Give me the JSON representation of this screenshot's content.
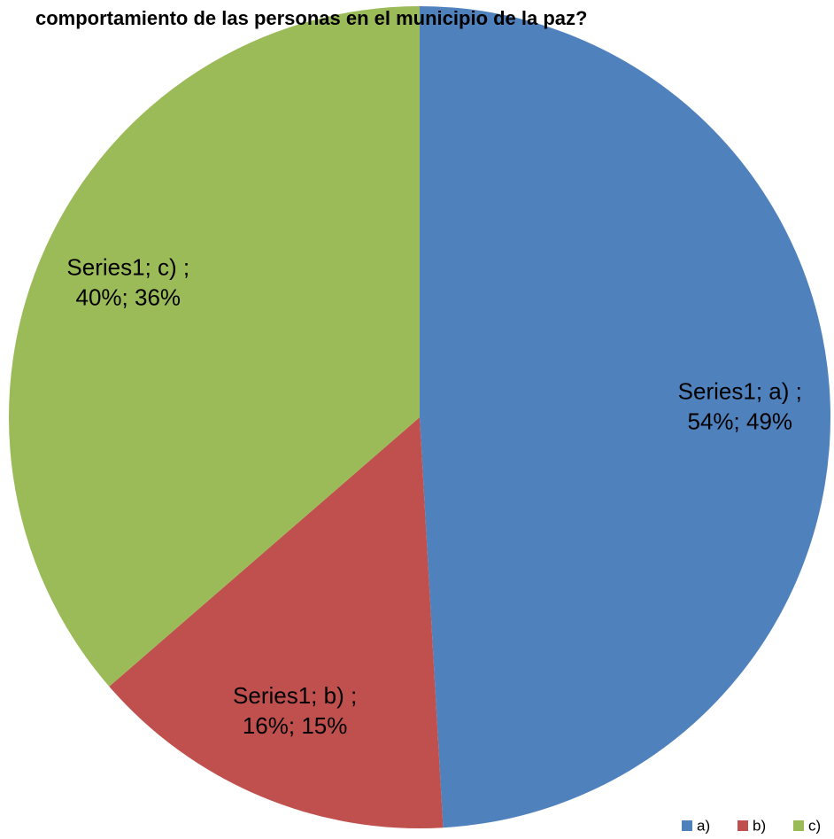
{
  "chart_data": {
    "type": "pie",
    "title": "comportamiento de las personas en el municipio de la paz?",
    "categories": [
      "a)",
      "b)",
      "c)"
    ],
    "series": [
      {
        "name": "Series1",
        "values": [
          54,
          16,
          40
        ],
        "colors": [
          "#4f81bd",
          "#c0504d",
          "#9bbb59"
        ]
      }
    ],
    "value_labels": [
      [
        "Series1; a) ;",
        "54%; 49%"
      ],
      [
        "Series1; b) ;",
        "16%; 15%"
      ],
      [
        "Series1; c) ;",
        "40%; 36%"
      ]
    ],
    "legend": "bottom-right"
  }
}
